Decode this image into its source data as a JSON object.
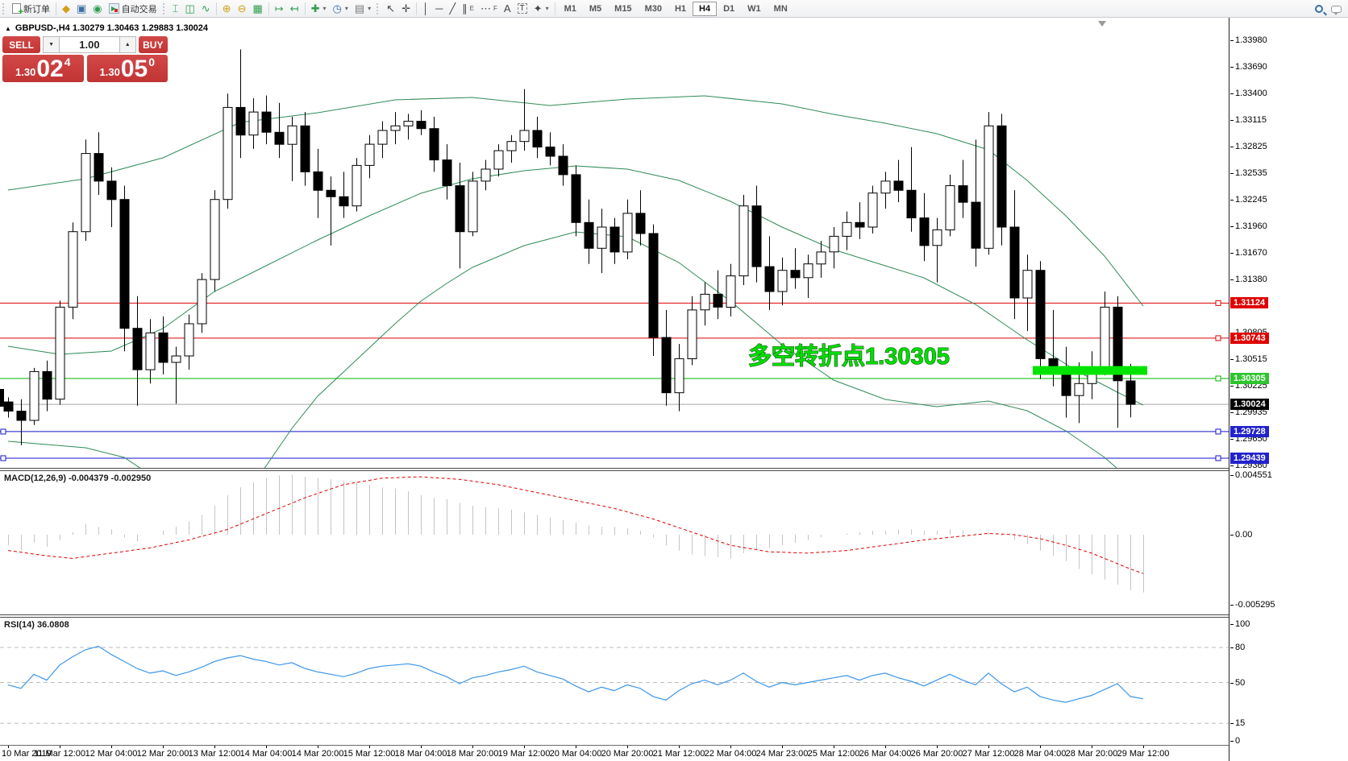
{
  "toolbar": {
    "new_order_label": "新订单",
    "autotrading_label": "自动交易",
    "timeframes": [
      "M1",
      "M5",
      "M15",
      "M30",
      "H1",
      "H4",
      "D1",
      "W1",
      "MN"
    ],
    "active_timeframe": "H4",
    "icons": [
      "new-order",
      "metaeditor",
      "terminal",
      "signals",
      "autotrading",
      "bar-chart",
      "candlestick-chart",
      "line-chart",
      "zoom-in",
      "zoom-out",
      "tile-windows",
      "auto-scroll",
      "chart-shift",
      "indicators",
      "periods",
      "templates",
      "cursor",
      "crosshair",
      "vertical-line",
      "horizontal-line",
      "trendline",
      "equidistant-channel",
      "fibonacci",
      "text",
      "text-label",
      "shapes",
      "search",
      "chat"
    ]
  },
  "symbol_info": {
    "text": "GBPUSD-,H4  1.30279 1.30463 1.29883 1.30024"
  },
  "one_click": {
    "sell_label": "SELL",
    "buy_label": "BUY",
    "volume": "1.00",
    "sell_small": "1.30",
    "sell_big": "02",
    "sell_sup": "4",
    "buy_small": "1.30",
    "buy_big": "05",
    "buy_sup": "0"
  },
  "indicator_labels": {
    "macd": "MACD(12,26,9) -0.004379 -0.002950",
    "rsi": "RSI(14) 36.0808"
  },
  "chart_data": {
    "type": "candlestick",
    "symbol": "GBPUSD-",
    "timeframe": "H4",
    "current_bar": {
      "open": 1.30279,
      "high": 1.30463,
      "low": 1.29883,
      "close": 1.30024
    },
    "y_axis": {
      "max": 1.3398,
      "min": 1.2936
    },
    "price_ticks": [
      "1.33980",
      "1.33690",
      "1.33400",
      "1.33115",
      "1.32825",
      "1.32535",
      "1.32245",
      "1.31960",
      "1.31670",
      "1.31380",
      "1.31090",
      "1.30805",
      "1.30515",
      "1.30225",
      "1.29935",
      "1.29650",
      "1.29360"
    ],
    "time_axis": [
      "10 Mar 2019",
      "11 Mar 12:00",
      "12 Mar 04:00",
      "12 Mar 20:00",
      "13 Mar 12:00",
      "14 Mar 04:00",
      "14 Mar 20:00",
      "15 Mar 12:00",
      "18 Mar 04:00",
      "18 Mar 20:00",
      "19 Mar 12:00",
      "20 Mar 04:00",
      "20 Mar 20:00",
      "21 Mar 12:00",
      "22 Mar 04:00",
      "24 Mar 23:00",
      "25 Mar 12:00",
      "26 Mar 04:00",
      "26 Mar 20:00",
      "27 Mar 12:00",
      "28 Mar 04:00",
      "28 Mar 20:00",
      "29 Mar 12:00"
    ],
    "bars": [
      [
        1.3005,
        1.301,
        1.2988,
        1.2995
      ],
      [
        1.2995,
        1.3008,
        1.2958,
        1.2985
      ],
      [
        1.2985,
        1.3042,
        1.298,
        1.3038
      ],
      [
        1.3038,
        1.305,
        1.2995,
        1.3008
      ],
      [
        1.3008,
        1.3115,
        1.3002,
        1.3108
      ],
      [
        1.3108,
        1.32,
        1.3095,
        1.319
      ],
      [
        1.319,
        1.329,
        1.318,
        1.3275
      ],
      [
        1.3275,
        1.3298,
        1.323,
        1.3245
      ],
      [
        1.3245,
        1.326,
        1.3195,
        1.3225
      ],
      [
        1.3225,
        1.324,
        1.306,
        1.3085
      ],
      [
        1.3085,
        1.312,
        1.3001,
        1.304
      ],
      [
        1.304,
        1.3095,
        1.3025,
        1.308
      ],
      [
        1.308,
        1.3098,
        1.3035,
        1.3048
      ],
      [
        1.3048,
        1.3065,
        1.3003,
        1.3055
      ],
      [
        1.3055,
        1.31,
        1.304,
        1.309
      ],
      [
        1.309,
        1.3145,
        1.308,
        1.3138
      ],
      [
        1.3138,
        1.3235,
        1.3125,
        1.3225
      ],
      [
        1.3225,
        1.334,
        1.3215,
        1.3325
      ],
      [
        1.3325,
        1.3388,
        1.327,
        1.3295
      ],
      [
        1.3295,
        1.3335,
        1.328,
        1.332
      ],
      [
        1.332,
        1.3338,
        1.3285,
        1.3298
      ],
      [
        1.3298,
        1.333,
        1.327,
        1.3285
      ],
      [
        1.3285,
        1.3315,
        1.3245,
        1.3305
      ],
      [
        1.3305,
        1.332,
        1.324,
        1.3255
      ],
      [
        1.3255,
        1.328,
        1.3205,
        1.3235
      ],
      [
        1.3235,
        1.325,
        1.3175,
        1.3228
      ],
      [
        1.3228,
        1.3255,
        1.3205,
        1.3218
      ],
      [
        1.3218,
        1.327,
        1.3212,
        1.3262
      ],
      [
        1.3262,
        1.3295,
        1.3248,
        1.3285
      ],
      [
        1.3285,
        1.331,
        1.327,
        1.33
      ],
      [
        1.33,
        1.332,
        1.3285,
        1.3305
      ],
      [
        1.3305,
        1.3318,
        1.329,
        1.331
      ],
      [
        1.331,
        1.3322,
        1.3295,
        1.3302
      ],
      [
        1.3302,
        1.3315,
        1.3255,
        1.3268
      ],
      [
        1.3268,
        1.3285,
        1.3225,
        1.324
      ],
      [
        1.324,
        1.3265,
        1.315,
        1.319
      ],
      [
        1.319,
        1.3255,
        1.3185,
        1.3245
      ],
      [
        1.3245,
        1.3268,
        1.3235,
        1.3258
      ],
      [
        1.3258,
        1.3285,
        1.325,
        1.3278
      ],
      [
        1.3278,
        1.3295,
        1.3265,
        1.3288
      ],
      [
        1.3288,
        1.3345,
        1.3278,
        1.33
      ],
      [
        1.33,
        1.3315,
        1.327,
        1.3282
      ],
      [
        1.3282,
        1.3298,
        1.3262,
        1.3272
      ],
      [
        1.3272,
        1.3285,
        1.324,
        1.3252
      ],
      [
        1.3252,
        1.3262,
        1.3185,
        1.32
      ],
      [
        1.32,
        1.3225,
        1.3155,
        1.3172
      ],
      [
        1.3172,
        1.3215,
        1.3145,
        1.3195
      ],
      [
        1.3195,
        1.3205,
        1.3155,
        1.3168
      ],
      [
        1.3168,
        1.3225,
        1.316,
        1.321
      ],
      [
        1.321,
        1.3235,
        1.3175,
        1.3188
      ],
      [
        1.3188,
        1.3198,
        1.3055,
        1.3075
      ],
      [
        1.3075,
        1.3105,
        1.3001,
        1.3015
      ],
      [
        1.3015,
        1.3068,
        1.2995,
        1.3052
      ],
      [
        1.3052,
        1.312,
        1.3045,
        1.3105
      ],
      [
        1.3105,
        1.3135,
        1.3088,
        1.3122
      ],
      [
        1.3122,
        1.3148,
        1.3095,
        1.3108
      ],
      [
        1.3108,
        1.3155,
        1.3098,
        1.3142
      ],
      [
        1.3142,
        1.323,
        1.3132,
        1.3218
      ],
      [
        1.3218,
        1.324,
        1.3135,
        1.3152
      ],
      [
        1.3152,
        1.3185,
        1.3105,
        1.3125
      ],
      [
        1.3125,
        1.3162,
        1.311,
        1.3148
      ],
      [
        1.3148,
        1.3172,
        1.3128,
        1.314
      ],
      [
        1.314,
        1.3165,
        1.3118,
        1.3155
      ],
      [
        1.3155,
        1.318,
        1.314,
        1.3168
      ],
      [
        1.3168,
        1.3195,
        1.315,
        1.3185
      ],
      [
        1.3185,
        1.3212,
        1.317,
        1.32
      ],
      [
        1.32,
        1.3222,
        1.3182,
        1.3195
      ],
      [
        1.3195,
        1.324,
        1.3188,
        1.3232
      ],
      [
        1.3232,
        1.3255,
        1.3215,
        1.3245
      ],
      [
        1.3245,
        1.3268,
        1.3222,
        1.3235
      ],
      [
        1.3235,
        1.3282,
        1.319,
        1.3205
      ],
      [
        1.3205,
        1.3232,
        1.3158,
        1.3175
      ],
      [
        1.3175,
        1.3205,
        1.3135,
        1.3192
      ],
      [
        1.3192,
        1.3252,
        1.3185,
        1.324
      ],
      [
        1.324,
        1.3268,
        1.3205,
        1.3222
      ],
      [
        1.3222,
        1.329,
        1.3152,
        1.3172
      ],
      [
        1.3172,
        1.332,
        1.3165,
        1.3305
      ],
      [
        1.3305,
        1.3318,
        1.3175,
        1.3195
      ],
      [
        1.3195,
        1.3235,
        1.3095,
        1.3118
      ],
      [
        1.3118,
        1.3165,
        1.3082,
        1.3148
      ],
      [
        1.3148,
        1.3158,
        1.303,
        1.3052
      ],
      [
        1.3052,
        1.3105,
        1.3022,
        1.3042
      ],
      [
        1.3042,
        1.3065,
        1.2988,
        1.3012
      ],
      [
        1.3012,
        1.3048,
        1.2982,
        1.3025
      ],
      [
        1.3025,
        1.306,
        1.3008,
        1.3042
      ],
      [
        1.3042,
        1.3125,
        1.3034,
        1.3108
      ],
      [
        1.3108,
        1.312,
        1.2977,
        1.3028
      ],
      [
        1.30279,
        1.30463,
        1.29883,
        1.30024
      ]
    ],
    "bollinger": {
      "period": 20,
      "color": "#2E8B57",
      "upper_pts": [
        [
          0,
          236
        ],
        [
          6,
          222
        ],
        [
          12,
          196
        ],
        [
          18,
          152
        ],
        [
          24,
          140
        ],
        [
          30,
          124
        ],
        [
          36,
          121
        ],
        [
          42,
          131
        ],
        [
          48,
          123
        ],
        [
          54,
          119
        ],
        [
          60,
          129
        ],
        [
          64,
          142
        ],
        [
          68,
          153
        ],
        [
          72,
          166
        ],
        [
          76,
          186
        ],
        [
          79,
          224
        ],
        [
          82,
          268
        ],
        [
          85,
          318
        ],
        [
          88,
          380
        ]
      ],
      "middle_pts": [
        [
          0,
          430
        ],
        [
          4,
          440
        ],
        [
          8,
          436
        ],
        [
          12,
          408
        ],
        [
          16,
          362
        ],
        [
          20,
          330
        ],
        [
          24,
          298
        ],
        [
          28,
          268
        ],
        [
          32,
          240
        ],
        [
          36,
          222
        ],
        [
          40,
          212
        ],
        [
          44,
          206
        ],
        [
          48,
          210
        ],
        [
          52,
          224
        ],
        [
          56,
          250
        ],
        [
          60,
          282
        ],
        [
          64,
          310
        ],
        [
          68,
          330
        ],
        [
          71,
          345
        ],
        [
          75,
          378
        ],
        [
          79,
          422
        ],
        [
          83,
          462
        ],
        [
          86,
          487
        ],
        [
          88,
          503
        ]
      ],
      "lower_pts": [
        [
          0,
          548
        ],
        [
          3,
          552
        ],
        [
          6,
          556
        ],
        [
          9,
          568
        ],
        [
          12,
          600
        ],
        [
          16,
          628
        ],
        [
          19,
          602
        ],
        [
          22,
          532
        ],
        [
          24,
          492
        ],
        [
          26,
          462
        ],
        [
          28,
          432
        ],
        [
          30,
          402
        ],
        [
          32,
          374
        ],
        [
          34,
          352
        ],
        [
          36,
          332
        ],
        [
          40,
          305
        ],
        [
          44,
          288
        ],
        [
          48,
          294
        ],
        [
          52,
          326
        ],
        [
          56,
          374
        ],
        [
          60,
          428
        ],
        [
          64,
          472
        ],
        [
          68,
          496
        ],
        [
          72,
          505
        ],
        [
          76,
          498
        ],
        [
          79,
          510
        ],
        [
          82,
          535
        ],
        [
          85,
          568
        ],
        [
          88,
          610
        ]
      ]
    },
    "hlines": [
      {
        "price": 1.31124,
        "label": "1.31124",
        "line_color": "#dd0000",
        "label_bg": "#e00000",
        "handles": "right"
      },
      {
        "price": 1.30743,
        "label": "1.30743",
        "line_color": "#dd0000",
        "label_bg": "#e00000",
        "handles": "right"
      },
      {
        "price": 1.30305,
        "label": "1.30305",
        "line_color": "#00b400",
        "label_bg": "#2dc52d",
        "handles": "right"
      },
      {
        "price": 1.30024,
        "label": "1.30024",
        "line_color": "#a8a8a8",
        "label_bg": "#000000",
        "handles": "none"
      },
      {
        "price": 1.29728,
        "label": "1.29728",
        "line_color": "#1414cc",
        "label_bg": "#2222cc",
        "handles": "both"
      },
      {
        "price": 1.29439,
        "label": "1.29439",
        "line_color": "#1414cc",
        "label_bg": "#2222cc",
        "handles": "both"
      }
    ],
    "annotation": {
      "text": "多空转折点1.30305",
      "text_color": "#00dc00",
      "outline_color": "#145214",
      "bar_color": "#00e400",
      "bar_from_index": 80,
      "bar_to_index": 88,
      "bar_price_top": 1.3044,
      "bar_price_bottom": 1.30345
    },
    "macd": {
      "label_values": {
        "top": "0.004551",
        "zero": "0.00",
        "bottom": "-0.005295"
      },
      "histogram_color": "#c4c4c4",
      "signal_color": "#e00000",
      "histogram": [
        -8,
        -12,
        -6,
        -9,
        -4,
        2,
        8,
        6,
        4,
        -2,
        -5,
        0,
        3,
        6,
        10,
        15,
        22,
        30,
        36,
        40,
        43,
        45,
        45.5,
        44,
        43,
        42,
        41,
        40,
        38,
        36,
        35,
        33,
        30,
        28,
        27,
        24,
        22,
        21,
        20,
        19,
        17,
        15,
        13,
        11,
        9,
        7,
        6,
        6,
        5,
        3,
        -2,
        -8,
        -12,
        -15,
        -16,
        -17,
        -18,
        -14,
        -11,
        -10,
        -8,
        -6,
        -4,
        -2,
        0,
        1,
        2,
        3,
        3,
        4,
        4,
        3,
        3,
        4,
        3,
        1,
        2,
        -1,
        -4,
        -7,
        -12,
        -16,
        -20,
        -26,
        -30,
        -34,
        -38,
        -42,
        -43.79
      ],
      "signal": [
        -12,
        -13.3,
        -14.7,
        -16,
        -17,
        -18,
        -16.7,
        -15.3,
        -14,
        -12.7,
        -11.3,
        -10,
        -8,
        -6,
        -4,
        -1.3,
        1.3,
        4,
        8,
        12,
        16,
        20,
        24,
        28,
        31.3,
        34.7,
        38,
        39.7,
        41.3,
        43,
        43.3,
        43.7,
        44,
        43.3,
        42.7,
        42,
        40.7,
        39.3,
        38,
        36,
        34,
        32,
        30,
        28,
        26,
        24,
        22,
        20,
        17.3,
        14.7,
        12,
        8.7,
        5.3,
        2,
        -1.3,
        -4.7,
        -8,
        -9.7,
        -11.3,
        -13,
        -13.3,
        -13.7,
        -14,
        -13.3,
        -12.7,
        -12,
        -10.7,
        -9.3,
        -8,
        -6.7,
        -5.3,
        -4,
        -3,
        -2,
        -1,
        0,
        1,
        0.5,
        0,
        -1.5,
        -3,
        -5.5,
        -8,
        -11,
        -14,
        -18,
        -22,
        -26,
        -29.5
      ],
      "unit": 0.0001
    },
    "rsi": {
      "line_color": "#3c96e8",
      "scale_labels": [
        100,
        80,
        50,
        15,
        0
      ],
      "dashed_levels": [
        80,
        50,
        15
      ],
      "values": [
        48,
        45,
        57,
        52,
        65,
        72,
        78,
        81,
        74,
        68,
        62,
        58,
        60,
        56,
        59,
        63,
        68,
        71,
        73,
        70,
        68,
        65,
        67,
        62,
        59,
        57,
        55,
        58,
        62,
        64,
        65,
        66,
        64,
        59,
        55,
        49,
        54,
        56,
        59,
        61,
        64,
        59,
        56,
        53,
        47,
        42,
        46,
        43,
        48,
        45,
        38,
        35,
        43,
        49,
        52,
        48,
        52,
        58,
        51,
        46,
        50,
        48,
        50,
        52,
        54,
        56,
        52,
        56,
        58,
        54,
        51,
        47,
        52,
        57,
        52,
        48,
        58,
        49,
        42,
        46,
        38,
        35,
        33,
        36,
        39,
        44,
        49,
        38,
        36.08
      ]
    }
  }
}
